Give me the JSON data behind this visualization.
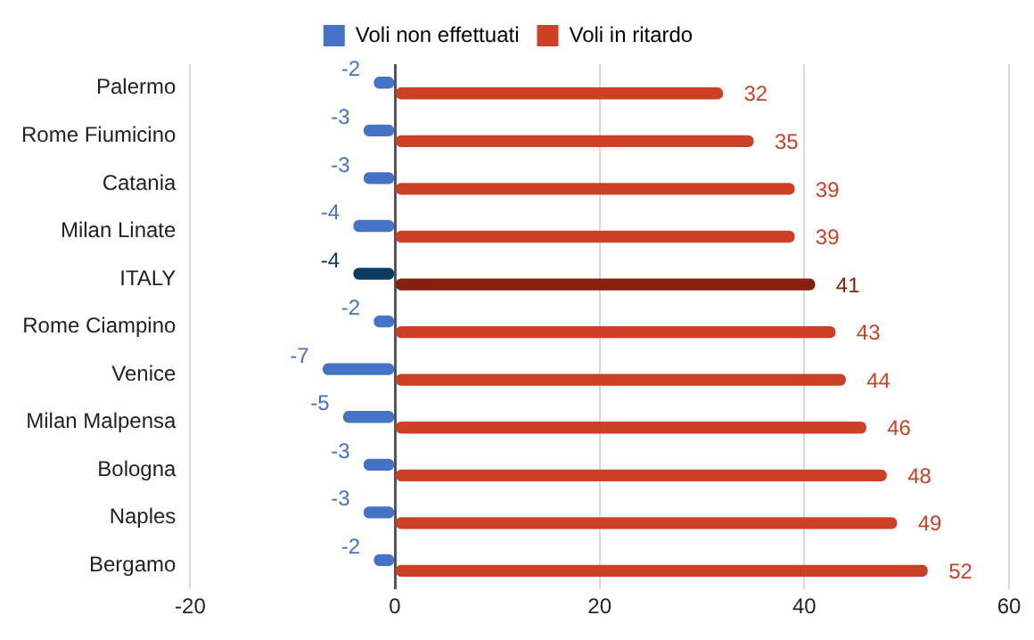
{
  "chart_data": {
    "type": "bar",
    "orientation": "horizontal",
    "categories": [
      "Palermo",
      "Rome Fiumicino",
      "Catania",
      "Milan Linate",
      "ITALY",
      "Rome Ciampino",
      "Venice",
      "Milan Malpensa",
      "Bologna",
      "Naples",
      "Bergamo"
    ],
    "series": [
      {
        "name": "Voli non effettuati",
        "color": "#4472c4",
        "colors": [
          "#4472c4",
          "#4472c4",
          "#4472c4",
          "#4472c4",
          "#0b3a62",
          "#4472c4",
          "#4472c4",
          "#4472c4",
          "#4472c4",
          "#4472c4",
          "#4472c4"
        ],
        "values": [
          -2,
          -3,
          -3,
          -4,
          -4,
          -2,
          -7,
          -5,
          -3,
          -3,
          -2
        ]
      },
      {
        "name": "Voli in ritardo",
        "color": "#cc4125",
        "colors": [
          "#cc4125",
          "#cc4125",
          "#cc4125",
          "#cc4125",
          "#85200c",
          "#cc4125",
          "#cc4125",
          "#cc4125",
          "#cc4125",
          "#cc4125",
          "#cc4125"
        ],
        "values": [
          32,
          35,
          39,
          39,
          41,
          43,
          44,
          46,
          48,
          49,
          52
        ]
      }
    ],
    "xlim": [
      -20,
      60
    ],
    "xticks": [
      -20,
      0,
      20,
      40,
      60
    ],
    "grid": "x",
    "legend": "top",
    "data_labels": true
  }
}
